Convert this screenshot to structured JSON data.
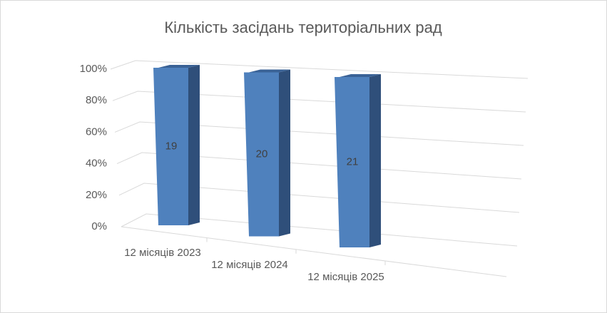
{
  "chart_data": {
    "type": "bar",
    "title": "Кількість засідань територіальних рад",
    "categories": [
      "12 місяців 2023",
      "12 місяців 2024",
      "12 місяців 2025"
    ],
    "values": [
      19,
      20,
      21
    ],
    "color": "#4f81bd",
    "stacked_percent": true,
    "ylim": [
      0,
      100
    ],
    "yticks": [
      {
        "value": 0,
        "label": "0%"
      },
      {
        "value": 20,
        "label": "20%"
      },
      {
        "value": 40,
        "label": "40%"
      },
      {
        "value": 60,
        "label": "60%"
      },
      {
        "value": 80,
        "label": "80%"
      },
      {
        "value": 100,
        "label": "100%"
      }
    ],
    "grid": true
  }
}
